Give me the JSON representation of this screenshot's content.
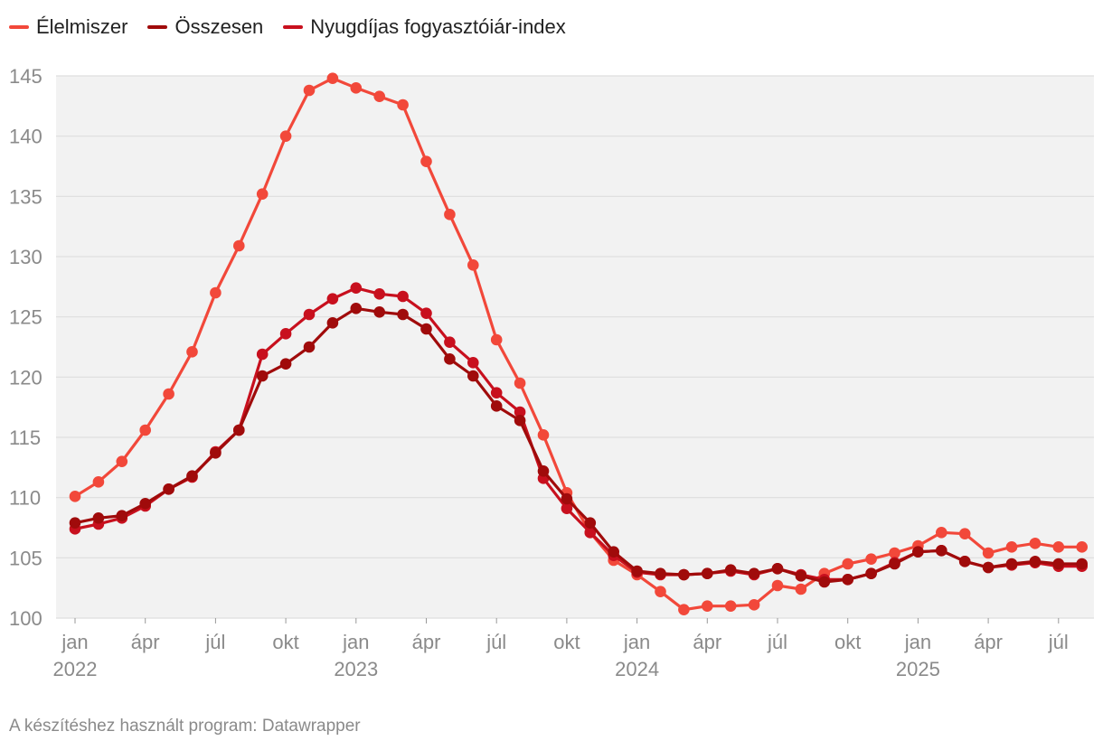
{
  "legend": [
    {
      "label": "Élelmiszer",
      "color": "#f2483a"
    },
    {
      "label": "Összesen",
      "color": "#a00b0b"
    },
    {
      "label": "Nyugdíjas fogyasztóiár-index",
      "color": "#c8101e"
    }
  ],
  "footer": {
    "text": "A készítéshez használt program: Datawrapper"
  },
  "chart_data": {
    "type": "line",
    "title": "",
    "xlabel": "",
    "ylabel": "",
    "ylim": [
      100,
      145
    ],
    "yticks": [
      100,
      105,
      110,
      115,
      120,
      125,
      130,
      135,
      140,
      145
    ],
    "grid": true,
    "legend_position": "top-left",
    "x_tick_labels": [
      {
        "i": 0,
        "month": "jan",
        "year": "2022"
      },
      {
        "i": 3,
        "month": "ápr",
        "year": ""
      },
      {
        "i": 6,
        "month": "júl",
        "year": ""
      },
      {
        "i": 9,
        "month": "okt",
        "year": ""
      },
      {
        "i": 12,
        "month": "jan",
        "year": "2023"
      },
      {
        "i": 15,
        "month": "ápr",
        "year": ""
      },
      {
        "i": 18,
        "month": "júl",
        "year": ""
      },
      {
        "i": 21,
        "month": "okt",
        "year": ""
      },
      {
        "i": 24,
        "month": "jan",
        "year": "2024"
      },
      {
        "i": 27,
        "month": "ápr",
        "year": ""
      },
      {
        "i": 30,
        "month": "júl",
        "year": ""
      },
      {
        "i": 33,
        "month": "okt",
        "year": ""
      },
      {
        "i": 36,
        "month": "jan",
        "year": "2025"
      },
      {
        "i": 39,
        "month": "ápr",
        "year": ""
      },
      {
        "i": 42,
        "month": "júl",
        "year": ""
      }
    ],
    "series": [
      {
        "name": "Élelmiszer",
        "color": "#f2483a",
        "values": [
          110.1,
          111.3,
          113.0,
          115.6,
          118.6,
          122.1,
          127.0,
          130.9,
          135.2,
          140.0,
          143.8,
          144.8,
          144.0,
          143.3,
          142.6,
          137.9,
          133.5,
          129.3,
          123.1,
          119.5,
          115.2,
          110.4,
          107.1,
          104.8,
          103.6,
          102.2,
          100.7,
          101.0,
          101.0,
          101.1,
          102.7,
          102.4,
          103.7,
          104.5,
          104.9,
          105.4,
          106.0,
          107.1,
          107.0,
          105.4,
          105.9,
          106.2,
          105.9,
          105.9
        ]
      },
      {
        "name": "Összesen",
        "color": "#a00b0b",
        "values": [
          107.9,
          108.3,
          108.5,
          109.5,
          110.7,
          111.8,
          113.7,
          115.6,
          120.1,
          121.1,
          122.5,
          124.5,
          125.7,
          125.4,
          125.2,
          124.0,
          121.5,
          120.1,
          117.6,
          116.4,
          112.2,
          109.9,
          107.9,
          105.5,
          103.9,
          103.7,
          103.6,
          103.7,
          104.0,
          103.7,
          104.1,
          103.5,
          103.0,
          103.2,
          103.7,
          104.5,
          105.5,
          105.6,
          104.7,
          104.2,
          104.5,
          104.7,
          104.5,
          104.5
        ]
      },
      {
        "name": "Nyugdíjas fogyasztóiár-index",
        "color": "#c8101e",
        "values": [
          107.4,
          107.8,
          108.3,
          109.3,
          110.7,
          111.7,
          113.8,
          115.6,
          121.9,
          123.6,
          125.2,
          126.5,
          127.4,
          126.9,
          126.7,
          125.3,
          122.9,
          121.2,
          118.7,
          117.1,
          111.6,
          109.1,
          107.1,
          105.2,
          103.8,
          103.6,
          103.6,
          103.7,
          103.9,
          103.6,
          104.1,
          103.6,
          103.2,
          103.2,
          103.7,
          104.6,
          105.5,
          105.6,
          104.7,
          104.2,
          104.4,
          104.6,
          104.3,
          104.3
        ]
      }
    ]
  }
}
